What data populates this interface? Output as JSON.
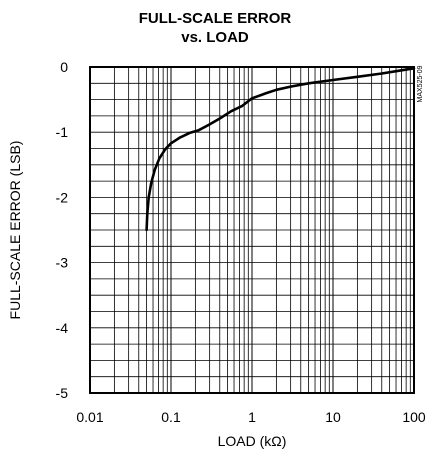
{
  "chart_data": {
    "type": "line",
    "title_line1": "FULL-SCALE ERROR",
    "title_line2": "vs. LOAD",
    "xlabel": "LOAD (kΩ)",
    "ylabel": "FULL-SCALE ERROR (LSB)",
    "side_note": "MAX525-09",
    "x_scale": "log",
    "xlim": [
      0.01,
      100
    ],
    "ylim": [
      -5,
      0
    ],
    "x_ticks": [
      {
        "value": 0.01,
        "label": "0.01"
      },
      {
        "value": 0.1,
        "label": "0.1"
      },
      {
        "value": 1,
        "label": "1"
      },
      {
        "value": 10,
        "label": "10"
      },
      {
        "value": 100,
        "label": "100"
      }
    ],
    "y_ticks": [
      {
        "value": 0,
        "label": "0"
      },
      {
        "value": -1,
        "label": "-1"
      },
      {
        "value": -2,
        "label": "-2"
      },
      {
        "value": -3,
        "label": "-3"
      },
      {
        "value": -4,
        "label": "-4"
      },
      {
        "value": -5,
        "label": "-5"
      }
    ],
    "y_grid_step": 0.25,
    "grid": true,
    "series": [
      {
        "color": "#000000",
        "points": [
          [
            0.05,
            -2.5
          ],
          [
            0.051,
            -2.25
          ],
          [
            0.053,
            -2.0
          ],
          [
            0.057,
            -1.78
          ],
          [
            0.063,
            -1.58
          ],
          [
            0.072,
            -1.4
          ],
          [
            0.085,
            -1.26
          ],
          [
            0.1,
            -1.17
          ],
          [
            0.13,
            -1.08
          ],
          [
            0.17,
            -1.01
          ],
          [
            0.22,
            -0.97
          ],
          [
            0.3,
            -0.88
          ],
          [
            0.4,
            -0.79
          ],
          [
            0.55,
            -0.68
          ],
          [
            0.75,
            -0.6
          ],
          [
            1.0,
            -0.48
          ],
          [
            1.5,
            -0.4
          ],
          [
            2,
            -0.35
          ],
          [
            3,
            -0.3
          ],
          [
            5,
            -0.25
          ],
          [
            10,
            -0.2
          ],
          [
            20,
            -0.15
          ],
          [
            40,
            -0.1
          ],
          [
            70,
            -0.05
          ],
          [
            100,
            -0.02
          ]
        ]
      }
    ]
  }
}
